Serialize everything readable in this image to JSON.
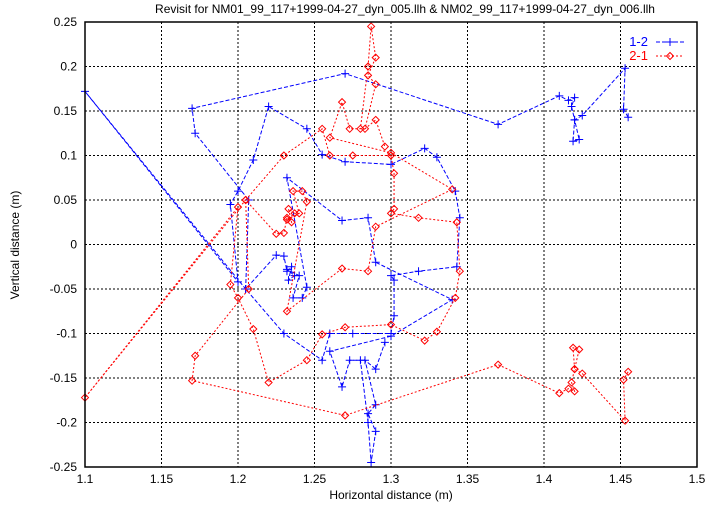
{
  "chart_data": {
    "type": "line",
    "title": "Revisit for NM01_99_117+1999-04-27_dyn_005.llh & NM02_99_117+1999-04-27_dyn_006.llh",
    "xlabel": "Horizontal distance (m)",
    "ylabel": "Vertical distance (m)",
    "xlim": [
      1.1,
      1.5
    ],
    "ylim": [
      -0.25,
      0.25
    ],
    "xticks": [
      "1.1",
      "1.15",
      "1.2",
      "1.25",
      "1.3",
      "1.35",
      "1.4",
      "1.45",
      "1.5"
    ],
    "yticks": [
      "0.25",
      "0.2",
      "0.15",
      "0.1",
      "0.05",
      "0",
      "-0.05",
      "-0.1",
      "-0.15",
      "-0.2",
      "-0.25"
    ],
    "grid": true,
    "legend_position": "top-right",
    "series": [
      {
        "name": "1-2",
        "color": "#0000ff",
        "marker": "plus",
        "line": "dashed",
        "points": [
          [
            1.455,
            0.143
          ],
          [
            1.452,
            0.152
          ],
          [
            1.453,
            0.198
          ],
          [
            1.425,
            0.145
          ],
          [
            1.42,
            0.14
          ],
          [
            1.423,
            0.118
          ],
          [
            1.419,
            0.116
          ],
          [
            1.42,
            0.14
          ],
          [
            1.418,
            0.155
          ],
          [
            1.42,
            0.165
          ],
          [
            1.416,
            0.162
          ],
          [
            1.41,
            0.167
          ],
          [
            1.37,
            0.135
          ],
          [
            1.27,
            0.192
          ],
          [
            1.17,
            0.153
          ],
          [
            1.172,
            0.125
          ],
          [
            1.207,
            0.05
          ],
          [
            1.205,
            -0.05
          ],
          [
            1.23,
            -0.1
          ],
          [
            1.255,
            -0.13
          ],
          [
            1.26,
            -0.1
          ],
          [
            1.275,
            -0.1
          ],
          [
            1.3,
            -0.1
          ],
          [
            1.302,
            -0.08
          ],
          [
            1.302,
            -0.04
          ],
          [
            1.3,
            -0.035
          ],
          [
            1.318,
            -0.03
          ],
          [
            1.343,
            -0.025
          ],
          [
            1.345,
            0.03
          ],
          [
            1.342,
            0.06
          ],
          [
            1.33,
            0.098
          ],
          [
            1.322,
            0.108
          ],
          [
            1.3,
            0.09
          ],
          [
            1.27,
            0.093
          ],
          [
            1.255,
            0.101
          ],
          [
            1.245,
            0.13
          ],
          [
            1.22,
            0.155
          ],
          [
            1.21,
            0.095
          ],
          [
            1.2,
            0.06
          ],
          [
            1.195,
            0.045
          ],
          [
            1.2,
            -0.042
          ],
          [
            1.1,
            0.172
          ],
          [
            1.205,
            -0.05
          ],
          [
            1.225,
            -0.012
          ],
          [
            1.23,
            -0.013
          ],
          [
            1.232,
            -0.03
          ],
          [
            1.235,
            -0.025
          ],
          [
            1.233,
            -0.04
          ],
          [
            1.237,
            -0.035
          ],
          [
            1.232,
            -0.028
          ],
          [
            1.24,
            -0.035
          ],
          [
            1.236,
            -0.06
          ],
          [
            1.242,
            -0.06
          ],
          [
            1.245,
            -0.048
          ],
          [
            1.232,
            0.075
          ],
          [
            1.268,
            0.027
          ],
          [
            1.285,
            0.03
          ],
          [
            1.29,
            -0.02
          ],
          [
            1.34,
            -0.062
          ],
          [
            1.3,
            -0.103
          ],
          [
            1.26,
            -0.12
          ],
          [
            1.268,
            -0.16
          ],
          [
            1.273,
            -0.13
          ],
          [
            1.28,
            -0.13
          ],
          [
            1.285,
            -0.2
          ],
          [
            1.287,
            -0.245
          ],
          [
            1.29,
            -0.21
          ],
          [
            1.285,
            -0.19
          ],
          [
            1.29,
            -0.18
          ],
          [
            1.283,
            -0.13
          ],
          [
            1.29,
            -0.14
          ],
          [
            1.296,
            -0.11
          ]
        ]
      },
      {
        "name": "2-1",
        "color": "#ff0000",
        "marker": "diamond",
        "line": "dotted",
        "points": [
          [
            1.455,
            -0.143
          ],
          [
            1.452,
            -0.152
          ],
          [
            1.453,
            -0.198
          ],
          [
            1.425,
            -0.145
          ],
          [
            1.42,
            -0.14
          ],
          [
            1.423,
            -0.118
          ],
          [
            1.419,
            -0.116
          ],
          [
            1.42,
            -0.14
          ],
          [
            1.418,
            -0.155
          ],
          [
            1.42,
            -0.165
          ],
          [
            1.416,
            -0.162
          ],
          [
            1.41,
            -0.167
          ],
          [
            1.37,
            -0.135
          ],
          [
            1.27,
            -0.192
          ],
          [
            1.17,
            -0.153
          ],
          [
            1.172,
            -0.125
          ],
          [
            1.207,
            -0.05
          ],
          [
            1.205,
            0.05
          ],
          [
            1.23,
            0.1
          ],
          [
            1.255,
            0.13
          ],
          [
            1.26,
            0.1
          ],
          [
            1.275,
            0.1
          ],
          [
            1.3,
            0.1
          ],
          [
            1.302,
            0.08
          ],
          [
            1.302,
            0.04
          ],
          [
            1.3,
            0.035
          ],
          [
            1.318,
            0.03
          ],
          [
            1.343,
            0.025
          ],
          [
            1.345,
            -0.03
          ],
          [
            1.342,
            -0.06
          ],
          [
            1.33,
            -0.098
          ],
          [
            1.322,
            -0.108
          ],
          [
            1.3,
            -0.09
          ],
          [
            1.27,
            -0.093
          ],
          [
            1.255,
            -0.101
          ],
          [
            1.245,
            -0.13
          ],
          [
            1.22,
            -0.155
          ],
          [
            1.21,
            -0.095
          ],
          [
            1.2,
            -0.06
          ],
          [
            1.195,
            -0.045
          ],
          [
            1.2,
            0.042
          ],
          [
            1.1,
            -0.172
          ],
          [
            1.205,
            0.05
          ],
          [
            1.225,
            0.012
          ],
          [
            1.23,
            0.013
          ],
          [
            1.232,
            0.03
          ],
          [
            1.235,
            0.025
          ],
          [
            1.233,
            0.04
          ],
          [
            1.237,
            0.035
          ],
          [
            1.232,
            0.028
          ],
          [
            1.24,
            0.035
          ],
          [
            1.236,
            0.06
          ],
          [
            1.242,
            0.06
          ],
          [
            1.245,
            0.048
          ],
          [
            1.232,
            -0.075
          ],
          [
            1.268,
            -0.027
          ],
          [
            1.285,
            -0.03
          ],
          [
            1.29,
            0.02
          ],
          [
            1.34,
            0.062
          ],
          [
            1.3,
            0.103
          ],
          [
            1.26,
            0.12
          ],
          [
            1.268,
            0.16
          ],
          [
            1.273,
            0.13
          ],
          [
            1.28,
            0.13
          ],
          [
            1.285,
            0.2
          ],
          [
            1.287,
            0.245
          ],
          [
            1.29,
            0.21
          ],
          [
            1.285,
            0.19
          ],
          [
            1.29,
            0.18
          ],
          [
            1.283,
            0.13
          ],
          [
            1.29,
            0.14
          ],
          [
            1.296,
            0.11
          ]
        ]
      }
    ]
  }
}
